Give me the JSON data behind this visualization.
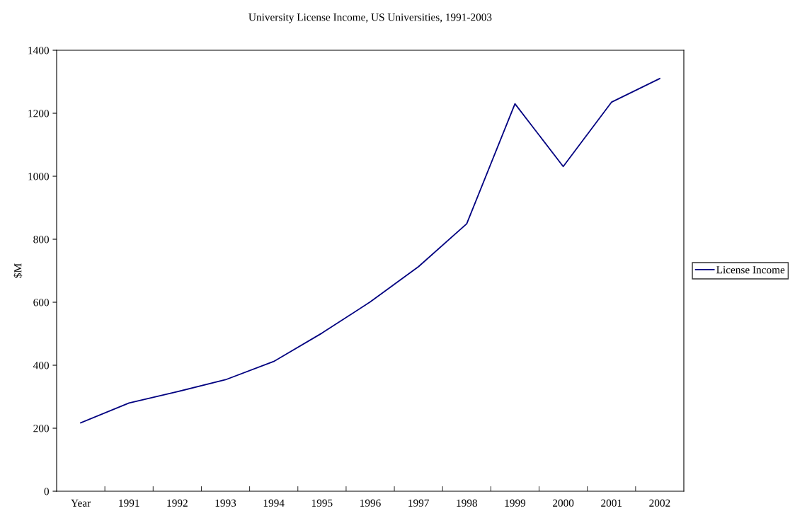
{
  "chart_data": {
    "type": "line",
    "title": "University License Income, US Universities, 1991-2003",
    "ylabel": "$M",
    "categories": [
      "Year",
      "1991",
      "1992",
      "1993",
      "1994",
      "1995",
      "1996",
      "1997",
      "1998",
      "1999",
      "2000",
      "2001",
      "2002"
    ],
    "series": [
      {
        "name": "License Income",
        "color": "#000080",
        "values": [
          217,
          280,
          316,
          354,
          412,
          502,
          601,
          713,
          849,
          1230,
          1031,
          1235,
          1310
        ]
      }
    ],
    "ylim": [
      0,
      1400
    ],
    "yticks": [
      0,
      200,
      400,
      600,
      800,
      1000,
      1200,
      1400
    ],
    "grid": false,
    "legend": "right",
    "marker": "none",
    "line_style": "solid"
  }
}
